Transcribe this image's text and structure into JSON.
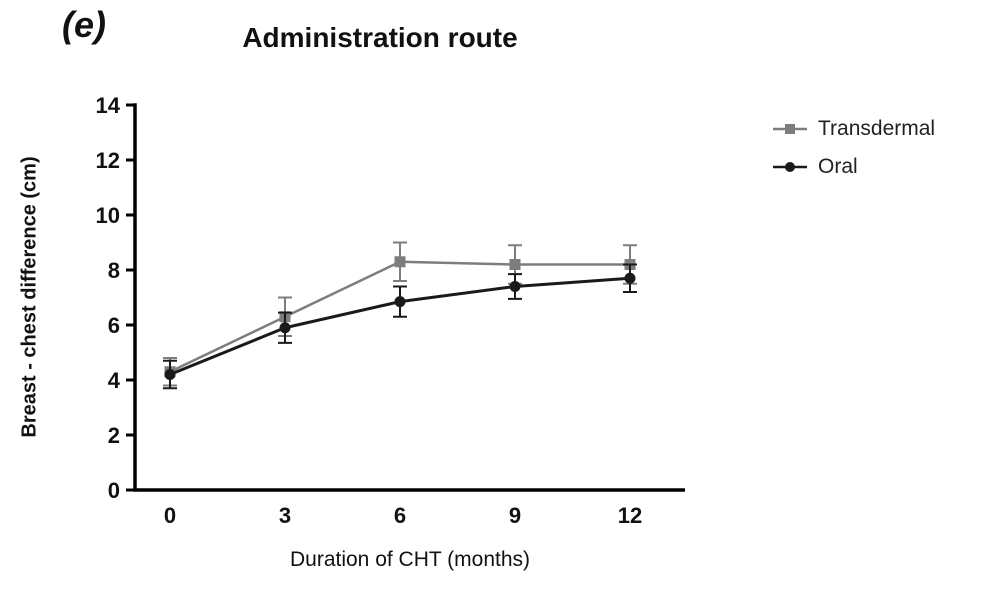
{
  "panel_label": "(e)",
  "chart_data": {
    "type": "line",
    "title": "Administration route",
    "xlabel": "Duration of CHT (months)",
    "ylabel": "Breast - chest difference (cm)",
    "x": [
      0,
      3,
      6,
      9,
      12
    ],
    "xticks": [
      0,
      3,
      6,
      9,
      12
    ],
    "ylim": [
      0,
      14
    ],
    "ytick_step": 2,
    "grid": false,
    "legend_position": "right",
    "series": [
      {
        "name": "Transdermal",
        "marker": "square",
        "color": "#7d7d7d",
        "line_width": 2.5,
        "values": [
          4.3,
          6.3,
          8.3,
          8.2,
          8.2
        ],
        "errors": [
          0.5,
          0.7,
          0.7,
          0.7,
          0.7
        ]
      },
      {
        "name": "Oral",
        "marker": "circle",
        "color": "#1a1a1a",
        "line_width": 3,
        "values": [
          4.2,
          5.9,
          6.85,
          7.4,
          7.7
        ],
        "errors": [
          0.5,
          0.55,
          0.55,
          0.45,
          0.5
        ]
      }
    ]
  }
}
